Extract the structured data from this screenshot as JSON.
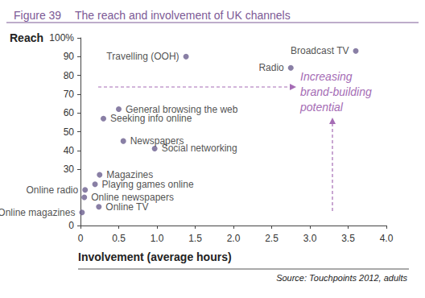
{
  "chart_data": {
    "type": "scatter",
    "figure": "Figure 39",
    "title": "The reach and involvement of UK channels",
    "xlabel": "Involvement (average hours)",
    "ylabel": "Reach",
    "source": "Source: Touchpoints 2012, adults",
    "annotation": "Increasing\nbrand-building\npotential",
    "labels": [
      "Broadcast TV",
      "Travelling (OOH)",
      "Radio",
      "General browsing the web",
      "Seeking info online",
      "Newspapers",
      "Social networking",
      "Magazines",
      "Playing games online",
      "Online radio",
      "Online newspapers",
      "Online TV",
      "Online magazines"
    ],
    "x": [
      3.6,
      1.38,
      2.75,
      0.5,
      0.3,
      0.56,
      0.97,
      0.25,
      0.19,
      0.06,
      0.05,
      0.24,
      0.02
    ],
    "values": [
      93,
      90,
      84,
      62,
      57,
      45,
      41,
      27,
      22,
      19,
      15,
      10,
      7
    ],
    "color": "#6b5f8e",
    "marker": "circle",
    "xlim": [
      0,
      4
    ],
    "xticks": [
      0,
      0.5,
      {
        "value": 1,
        "label": "1.0"
      },
      1.5,
      {
        "value": 2,
        "label": "2.0"
      },
      2.5,
      {
        "value": 3,
        "label": "3.0"
      },
      3.5,
      {
        "value": 4,
        "label": "4.0"
      }
    ],
    "ylim": [
      0,
      100
    ],
    "yticks": [
      0,
      30,
      40,
      50,
      60,
      70,
      80,
      90,
      {
        "value": 100,
        "label": "100%"
      }
    ],
    "grid": false
  }
}
